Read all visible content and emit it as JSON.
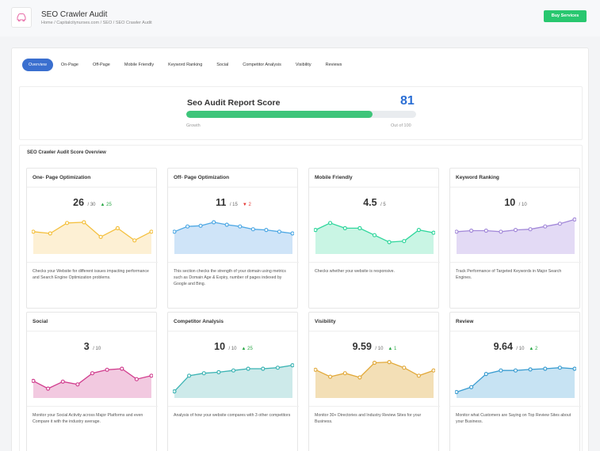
{
  "header": {
    "title": "SEO Crawler Audit",
    "breadcrumb": "Home / Capitalcitynurses.com / SEO / SEO Crawler Audit",
    "buy_label": "Buy Services"
  },
  "tabs": [
    {
      "label": "Overview",
      "active": true
    },
    {
      "label": "On-Page"
    },
    {
      "label": "Off-Page"
    },
    {
      "label": "Mobile Friendly"
    },
    {
      "label": "Keyword Ranking"
    },
    {
      "label": "Social"
    },
    {
      "label": "Competitor Analysis"
    },
    {
      "label": "Visibility"
    },
    {
      "label": "Reviews"
    }
  ],
  "score": {
    "title": "Seo Audit Report Score",
    "value": "81",
    "progress_percent": 81,
    "left_label": "Growth",
    "right_label": "Out of 100"
  },
  "overview": {
    "title": "SEO Crawler Audit Score Overview",
    "cards": [
      {
        "title": "One- Page Optimization",
        "score": "26",
        "outof": "/ 30",
        "delta": "25",
        "delta_dir": "up",
        "color": "#f4c03e",
        "fill": "#fdf0d4",
        "points": [
          0.45,
          0.5,
          0.2,
          0.18,
          0.6,
          0.35,
          0.7,
          0.45
        ],
        "desc": "Checks your Website for different issues impacting performance and Search Engine Optimization problems."
      },
      {
        "title": "Off- Page Optimization",
        "score": "11",
        "outof": "/ 15",
        "delta": "2",
        "delta_dir": "down",
        "color": "#4ea8e4",
        "fill": "#cfe4f8",
        "points": [
          0.45,
          0.3,
          0.28,
          0.18,
          0.25,
          0.3,
          0.38,
          0.4,
          0.45,
          0.5
        ],
        "desc": "This section checks the strength of your domain using metrics such as Domain Age & Expiry, number of pages indexed by Google and Bing."
      },
      {
        "title": "Mobile Friendly",
        "score": "4.5",
        "outof": "/ 5",
        "delta": "",
        "delta_dir": "",
        "color": "#2fd69c",
        "fill": "#c9f5e4",
        "points": [
          0.4,
          0.2,
          0.35,
          0.35,
          0.55,
          0.75,
          0.72,
          0.4,
          0.48
        ],
        "desc": "Checks whether your website is responsive."
      },
      {
        "title": "Keyword Ranking",
        "score": "10",
        "outof": "/ 10",
        "delta": "",
        "delta_dir": "",
        "color": "#a389d9",
        "fill": "#e3daf5",
        "points": [
          0.45,
          0.42,
          0.42,
          0.45,
          0.4,
          0.38,
          0.3,
          0.22,
          0.1
        ],
        "desc": "Track Performance of Targeted Keywords in Major Search Engines."
      },
      {
        "title": "Social",
        "score": "3",
        "outof": "/ 10",
        "delta": "",
        "delta_dir": "",
        "color": "#d13d8e",
        "fill": "#f2c9e0",
        "points": [
          0.6,
          0.82,
          0.62,
          0.7,
          0.38,
          0.28,
          0.25,
          0.55,
          0.45
        ],
        "desc": "Monitor your Social Activity across Major Platforms and even Compare it with the industry average."
      },
      {
        "title": "Competitor Analysis",
        "score": "10",
        "outof": "/ 10",
        "delta": "25",
        "delta_dir": "up",
        "color": "#3bb3b3",
        "fill": "#cdeaea",
        "points": [
          0.9,
          0.45,
          0.38,
          0.35,
          0.3,
          0.25,
          0.25,
          0.22,
          0.15
        ],
        "desc": "Analysis of how your website compares with 3 other competitors"
      },
      {
        "title": "Visibility",
        "score": "9.59",
        "outof": "/ 10",
        "delta": "1",
        "delta_dir": "up",
        "color": "#e2a93a",
        "fill": "#f3dfb6",
        "points": [
          0.28,
          0.48,
          0.38,
          0.5,
          0.08,
          0.06,
          0.22,
          0.45,
          0.3
        ],
        "desc": "Monitor 30+ Directories and Industry Review Sites for your Business."
      },
      {
        "title": "Review",
        "score": "9.64",
        "outof": "/ 10",
        "delta": "2",
        "delta_dir": "up",
        "color": "#3b9dd1",
        "fill": "#c7e3f3",
        "points": [
          0.92,
          0.78,
          0.4,
          0.3,
          0.3,
          0.27,
          0.25,
          0.22,
          0.25
        ],
        "desc": "Monitor what Customers are Saying on Top Review Sites about your Business."
      }
    ]
  }
}
